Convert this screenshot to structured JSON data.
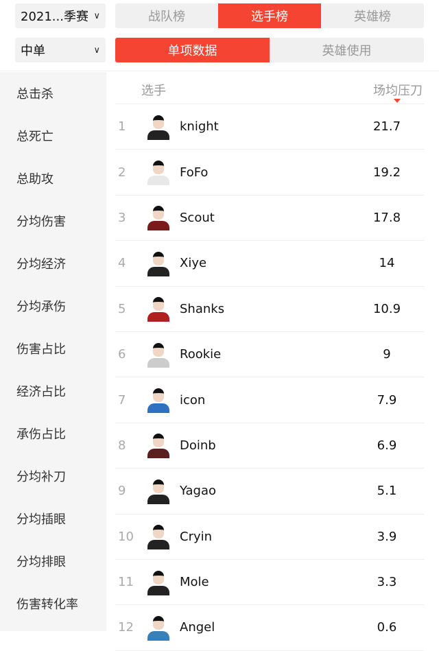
{
  "filters": {
    "season": "2021...季赛",
    "position": "中单"
  },
  "main_tabs": [
    {
      "label": "战队榜",
      "active": false
    },
    {
      "label": "选手榜",
      "active": true
    },
    {
      "label": "英雄榜",
      "active": false
    }
  ],
  "sub_tabs": [
    {
      "label": "单项数据",
      "active": true
    },
    {
      "label": "英雄使用",
      "active": false
    }
  ],
  "sidebar": [
    "总击杀",
    "总死亡",
    "总助攻",
    "分均伤害",
    "分均经济",
    "分均承伤",
    "伤害占比",
    "经济占比",
    "承伤占比",
    "分均补刀",
    "分均插眼",
    "分均排眼",
    "伤害转化率"
  ],
  "table": {
    "col_player": "选手",
    "col_stat": "场均压刀",
    "sort": "desc",
    "rows": [
      {
        "rank": "1",
        "name": "knight",
        "value": "21.7",
        "jersey": "#222222"
      },
      {
        "rank": "2",
        "name": "FoFo",
        "value": "19.2",
        "jersey": "#e8e8e8"
      },
      {
        "rank": "3",
        "name": "Scout",
        "value": "17.8",
        "jersey": "#7a1a1a"
      },
      {
        "rank": "4",
        "name": "Xiye",
        "value": "14",
        "jersey": "#222222"
      },
      {
        "rank": "5",
        "name": "Shanks",
        "value": "10.9",
        "jersey": "#b02020"
      },
      {
        "rank": "6",
        "name": "Rookie",
        "value": "9",
        "jersey": "#cccccc"
      },
      {
        "rank": "7",
        "name": "icon",
        "value": "7.9",
        "jersey": "#3070c0"
      },
      {
        "rank": "8",
        "name": "Doinb",
        "value": "6.9",
        "jersey": "#5a2020"
      },
      {
        "rank": "9",
        "name": "Yagao",
        "value": "5.1",
        "jersey": "#222222"
      },
      {
        "rank": "10",
        "name": "Cryin",
        "value": "3.9",
        "jersey": "#222222"
      },
      {
        "rank": "11",
        "name": "Mole",
        "value": "3.3",
        "jersey": "#222222"
      },
      {
        "rank": "12",
        "name": "Angel",
        "value": "0.6",
        "jersey": "#3a80b8"
      }
    ]
  },
  "colors": {
    "accent": "#f54532"
  }
}
